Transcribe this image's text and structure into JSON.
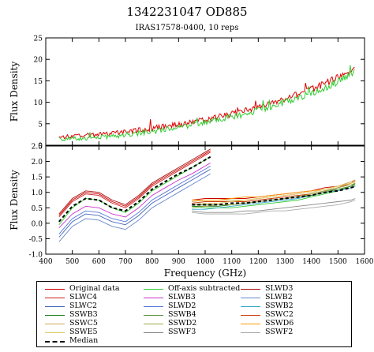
{
  "figure": {
    "title": "1342231047 OD885",
    "subtitle": "IRAS17578-0400, 10 reps"
  },
  "chart_data": [
    {
      "type": "line",
      "panel": "top",
      "ylabel": "Flux Density",
      "xlim": [
        400,
        1600
      ],
      "ylim": [
        0,
        25
      ],
      "yticks": [
        0,
        5,
        10,
        15,
        20,
        25
      ],
      "xticks": [
        400,
        500,
        600,
        700,
        800,
        900,
        1000,
        1100,
        1200,
        1300,
        1400,
        1500,
        1600
      ],
      "series": [
        {
          "name": "Original data",
          "color": "#dd0000",
          "x": [
            450,
            500,
            550,
            600,
            650,
            700,
            750,
            800,
            850,
            900,
            950,
            1000,
            1050,
            1100,
            1150,
            1200,
            1250,
            1300,
            1350,
            1400,
            1450,
            1500,
            1550,
            1565
          ],
          "y": [
            1.9,
            2.1,
            2.3,
            2.5,
            2.8,
            3.1,
            3.5,
            3.9,
            4.4,
            4.9,
            5.4,
            6.0,
            6.6,
            7.3,
            8.0,
            8.8,
            9.7,
            10.7,
            11.8,
            13.0,
            14.3,
            15.8,
            17.6,
            18.6
          ]
        },
        {
          "name": "Off-axis subtracted",
          "color": "#33cc33",
          "x": [
            450,
            500,
            550,
            600,
            650,
            700,
            750,
            800,
            850,
            900,
            950,
            1000,
            1050,
            1100,
            1150,
            1200,
            1250,
            1300,
            1350,
            1400,
            1450,
            1500,
            1550,
            1565
          ],
          "y": [
            1.4,
            1.5,
            1.6,
            1.8,
            2.1,
            2.4,
            2.8,
            3.2,
            3.6,
            4.1,
            4.7,
            5.3,
            5.9,
            6.6,
            7.3,
            8.1,
            9.0,
            10.0,
            11.0,
            12.2,
            13.4,
            14.8,
            16.4,
            17.2
          ]
        }
      ]
    },
    {
      "type": "line",
      "panel": "bottom",
      "xlabel": "Frequency (GHz)",
      "ylabel": "Flux Density",
      "xlim": [
        400,
        1600
      ],
      "ylim": [
        -1.0,
        2.5
      ],
      "yticks": [
        -1.0,
        -0.5,
        0.0,
        0.5,
        1.0,
        1.5,
        2.0,
        2.5
      ],
      "ytick_labels": [
        "-1.0",
        "-0.5",
        "0.0",
        "0.5",
        "1.0",
        "1.5",
        "2.0",
        "2.5"
      ],
      "xticks": [
        400,
        500,
        600,
        700,
        800,
        900,
        1000,
        1100,
        1200,
        1300,
        1400,
        1500,
        1600
      ],
      "slw_x": [
        450,
        500,
        550,
        600,
        650,
        700,
        750,
        800,
        850,
        900,
        950,
        1000,
        1020
      ],
      "ssw_x": [
        950,
        1000,
        1050,
        1100,
        1150,
        1200,
        1250,
        1300,
        1350,
        1400,
        1450,
        1500,
        1550,
        1565
      ],
      "series": [
        {
          "name": "Original data",
          "color": "#cc0000",
          "slw": [
            0.25,
            0.75,
            1.0,
            0.95,
            0.7,
            0.55,
            0.85,
            1.25,
            1.5,
            1.75,
            2.0,
            2.25,
            2.35
          ],
          "ssw": [
            0.75,
            0.8,
            0.8,
            0.8,
            0.8,
            0.85,
            0.9,
            0.95,
            1.0,
            1.05,
            1.15,
            1.2,
            1.3,
            1.35
          ]
        },
        {
          "name": "Off-axis subtracted",
          "color": "#33cc33",
          "slw": [
            -0.05,
            0.5,
            0.8,
            0.75,
            0.5,
            0.35,
            0.65,
            1.05,
            1.3,
            1.55,
            1.8,
            2.05,
            2.15
          ],
          "ssw": [
            0.55,
            0.5,
            0.5,
            0.5,
            0.55,
            0.6,
            0.65,
            0.7,
            0.75,
            0.85,
            0.95,
            1.05,
            1.2,
            1.3
          ]
        },
        {
          "name": "SLWD3",
          "color": "#aa1111",
          "slw": [
            0.3,
            0.8,
            1.05,
            1.0,
            0.75,
            0.6,
            0.9,
            1.3,
            1.55,
            1.8,
            2.05,
            2.3,
            2.4
          ]
        },
        {
          "name": "SLWC4",
          "color": "#cc2222",
          "slw": [
            0.2,
            0.7,
            0.95,
            0.9,
            0.65,
            0.5,
            0.8,
            1.2,
            1.45,
            1.7,
            1.95,
            2.2,
            2.3
          ]
        },
        {
          "name": "SLWB3",
          "color": "#cc33cc",
          "slw": [
            -0.15,
            0.3,
            0.55,
            0.5,
            0.3,
            0.2,
            0.5,
            0.9,
            1.15,
            1.4,
            1.6,
            1.85,
            1.95
          ]
        },
        {
          "name": "SLWB2",
          "color": "#6688cc",
          "slw": [
            -0.6,
            -0.1,
            0.15,
            0.1,
            -0.1,
            -0.2,
            0.1,
            0.5,
            0.75,
            1.0,
            1.25,
            1.5,
            1.6
          ]
        },
        {
          "name": "SLWC2",
          "color": "#4466bb",
          "slw": [
            -0.45,
            0.05,
            0.3,
            0.25,
            0.05,
            -0.05,
            0.25,
            0.65,
            0.9,
            1.15,
            1.4,
            1.65,
            1.75
          ]
        },
        {
          "name": "SLWD2",
          "color": "#5577dd",
          "slw": [
            -0.35,
            0.15,
            0.4,
            0.35,
            0.15,
            0.05,
            0.35,
            0.75,
            1.0,
            1.25,
            1.5,
            1.75,
            1.85
          ]
        },
        {
          "name": "SSWB2",
          "color": "#33aacc",
          "ssw": [
            0.45,
            0.45,
            0.5,
            0.55,
            0.6,
            0.65,
            0.7,
            0.75,
            0.8,
            0.9,
            1.0,
            1.05,
            1.15,
            1.2
          ]
        },
        {
          "name": "SSWB3",
          "color": "#117711",
          "ssw": [
            0.55,
            0.55,
            0.55,
            0.6,
            0.65,
            0.7,
            0.75,
            0.8,
            0.85,
            0.9,
            1.0,
            1.1,
            1.2,
            1.25
          ]
        },
        {
          "name": "SSWB4",
          "color": "#558833",
          "ssw": [
            0.6,
            0.6,
            0.6,
            0.6,
            0.65,
            0.7,
            0.75,
            0.8,
            0.85,
            0.95,
            1.05,
            1.1,
            1.2,
            1.3
          ]
        },
        {
          "name": "SSWC2",
          "color": "#cc3300",
          "ssw": [
            0.65,
            0.7,
            0.7,
            0.7,
            0.7,
            0.75,
            0.8,
            0.85,
            0.9,
            0.95,
            1.05,
            1.15,
            1.3,
            1.4
          ]
        },
        {
          "name": "SSWC5",
          "color": "#ccaa55",
          "ssw": [
            0.7,
            0.75,
            0.75,
            0.75,
            0.75,
            0.8,
            0.85,
            0.9,
            0.95,
            1.0,
            1.1,
            1.2,
            1.35,
            1.4
          ]
        },
        {
          "name": "SSWD2",
          "color": "#99aa44",
          "ssw": [
            0.5,
            0.55,
            0.6,
            0.6,
            0.65,
            0.7,
            0.75,
            0.8,
            0.85,
            0.95,
            1.05,
            1.15,
            1.25,
            1.3
          ]
        },
        {
          "name": "SSWD6",
          "color": "#ff9900",
          "ssw": [
            0.75,
            0.75,
            0.75,
            0.8,
            0.85,
            0.85,
            0.9,
            0.95,
            1.0,
            1.05,
            1.1,
            1.2,
            1.3,
            1.35
          ]
        },
        {
          "name": "SSWE5",
          "color": "#ddcc66",
          "ssw": [
            0.6,
            0.65,
            0.65,
            0.7,
            0.75,
            0.8,
            0.85,
            0.9,
            0.95,
            1.0,
            1.1,
            1.2,
            1.3,
            1.35
          ]
        },
        {
          "name": "SSWF3",
          "color": "#888888",
          "ssw": [
            0.4,
            0.35,
            0.35,
            0.35,
            0.4,
            0.4,
            0.45,
            0.5,
            0.55,
            0.6,
            0.65,
            0.7,
            0.75,
            0.8
          ]
        },
        {
          "name": "SSWF2",
          "color": "#aaaaaa",
          "ssw": [
            0.35,
            0.3,
            0.3,
            0.3,
            0.3,
            0.35,
            0.4,
            0.4,
            0.45,
            0.5,
            0.55,
            0.6,
            0.7,
            0.75
          ]
        },
        {
          "name": "Median",
          "color": "#000000",
          "dashed": true,
          "slw": [
            0.05,
            0.55,
            0.8,
            0.75,
            0.5,
            0.4,
            0.7,
            1.1,
            1.35,
            1.6,
            1.8,
            2.05,
            2.15
          ],
          "ssw": [
            0.6,
            0.6,
            0.6,
            0.65,
            0.65,
            0.7,
            0.75,
            0.8,
            0.85,
            0.9,
            1.0,
            1.05,
            1.15,
            1.2
          ]
        }
      ]
    }
  ],
  "legend": {
    "items": [
      {
        "label": "Original data",
        "color": "#cc0000"
      },
      {
        "label": "Off-axis subtracted",
        "color": "#33cc33"
      },
      {
        "label": "SLWD3",
        "color": "#aa1111"
      },
      {
        "label": "SLWC4",
        "color": "#cc2222"
      },
      {
        "label": "SLWB3",
        "color": "#cc33cc"
      },
      {
        "label": "SLWB2",
        "color": "#6688cc"
      },
      {
        "label": "SLWC2",
        "color": "#4466bb"
      },
      {
        "label": "SLWD2",
        "color": "#5577dd"
      },
      {
        "label": "SSWB2",
        "color": "#33aacc"
      },
      {
        "label": "SSWB3",
        "color": "#117711"
      },
      {
        "label": "SSWB4",
        "color": "#558833"
      },
      {
        "label": "SSWC2",
        "color": "#cc3300"
      },
      {
        "label": "SSWC5",
        "color": "#ccaa55"
      },
      {
        "label": "SSWD2",
        "color": "#99aa44"
      },
      {
        "label": "SSWD6",
        "color": "#ff9900"
      },
      {
        "label": "SSWE5",
        "color": "#ddcc66"
      },
      {
        "label": "SSWF3",
        "color": "#888888"
      },
      {
        "label": "SSWF2",
        "color": "#aaaaaa"
      },
      {
        "label": "Median",
        "color": "#000000",
        "dashed": true
      }
    ]
  }
}
